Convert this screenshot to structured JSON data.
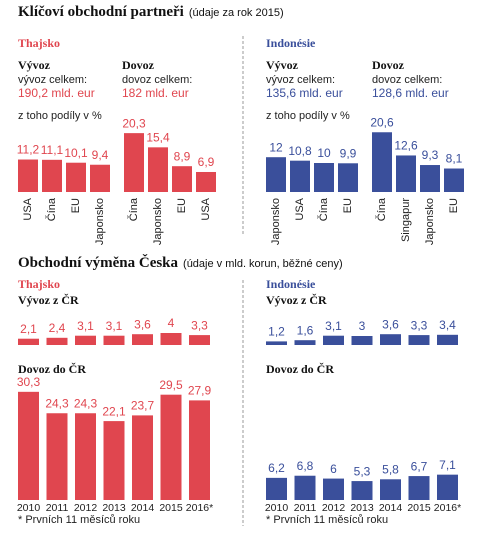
{
  "sections": [
    {
      "title": "Klíčoví obchodní partneři",
      "subtitle": "(údaje za rok 2015)"
    },
    {
      "title": "Obchodní výměna Česka",
      "subtitle": "(údaje v mld. korun, běžné ceny)"
    }
  ],
  "chart_data": [
    {
      "type": "bar",
      "group": "Thajsko",
      "title": "Vývoz",
      "total_label": "vývoz celkem:",
      "total_value": "190,2 mld. eur",
      "note": "z toho podíly v %",
      "categories": [
        "USA",
        "Čína",
        "EU",
        "Japonsko"
      ],
      "values": [
        11.2,
        11.1,
        10.1,
        9.4
      ],
      "value_labels": [
        "11,2",
        "11,1",
        "10,1",
        "9,4"
      ],
      "color": "#e0464f"
    },
    {
      "type": "bar",
      "title": "Dovoz",
      "total_label": "dovoz celkem:",
      "total_value": "182 mld. eur",
      "categories": [
        "Čína",
        "Japonsko",
        "EU",
        "USA"
      ],
      "values": [
        20.3,
        15.4,
        8.9,
        6.9
      ],
      "value_labels": [
        "20,3",
        "15,4",
        "8,9",
        "6,9"
      ],
      "color": "#e0464f"
    },
    {
      "type": "bar",
      "group": "Indonésie",
      "title": "Vývoz",
      "total_label": "vývoz celkem:",
      "total_value": "135,6 mld. eur",
      "note": "z toho podíly v %",
      "categories": [
        "Japonsko",
        "USA",
        "Čína",
        "EU"
      ],
      "values": [
        12,
        10.8,
        10,
        9.9
      ],
      "value_labels": [
        "12",
        "10,8",
        "10",
        "9,9"
      ],
      "color": "#3a4f9b"
    },
    {
      "type": "bar",
      "title": "Dovoz",
      "total_label": "dovoz celkem:",
      "total_value": "128,6 mld. eur",
      "categories": [
        "Čína",
        "Singapur",
        "Japonsko",
        "EU"
      ],
      "values": [
        20.6,
        12.6,
        9.3,
        8.1
      ],
      "value_labels": [
        "20,6",
        "12,6",
        "9,3",
        "8,1"
      ],
      "color": "#3a4f9b"
    },
    {
      "type": "bar",
      "group": "Thajsko",
      "title": "Vývoz z ČR",
      "values": [
        2.1,
        2.4,
        3.1,
        3.1,
        3.6,
        4,
        3.3
      ],
      "value_labels": [
        "2,1",
        "2,4",
        "3,1",
        "3,1",
        "3,6",
        "4",
        "3,3"
      ],
      "color": "#e0464f"
    },
    {
      "type": "bar",
      "title": "Dovoz do ČR",
      "footnote": "* Prvních 11 měsíců roku",
      "categories": [
        "2010",
        "2011",
        "2012",
        "2013",
        "2014",
        "2015",
        "2016*"
      ],
      "values": [
        30.3,
        24.3,
        24.3,
        22.1,
        23.7,
        29.5,
        27.9
      ],
      "value_labels": [
        "30,3",
        "24,3",
        "24,3",
        "22,1",
        "23,7",
        "29,5",
        "27,9"
      ],
      "color": "#e0464f"
    },
    {
      "type": "bar",
      "group": "Indonésie",
      "title": "Vývoz z ČR",
      "values": [
        1.2,
        1.6,
        3.1,
        3,
        3.6,
        3.3,
        3.4
      ],
      "value_labels": [
        "1,2",
        "1,6",
        "3,1",
        "3",
        "3,6",
        "3,3",
        "3,4"
      ],
      "color": "#3a4f9b"
    },
    {
      "type": "bar",
      "title": "Dovoz do ČR",
      "footnote": "* Prvních 11 měsíců roku",
      "categories": [
        "2010",
        "2011",
        "2012",
        "2013",
        "2014",
        "2015",
        "2016*"
      ],
      "values": [
        6.2,
        6.8,
        6,
        5.3,
        5.8,
        6.7,
        7.1
      ],
      "value_labels": [
        "6,2",
        "6,8",
        "6",
        "5,3",
        "5,8",
        "6,7",
        "7,1"
      ],
      "color": "#3a4f9b"
    }
  ]
}
